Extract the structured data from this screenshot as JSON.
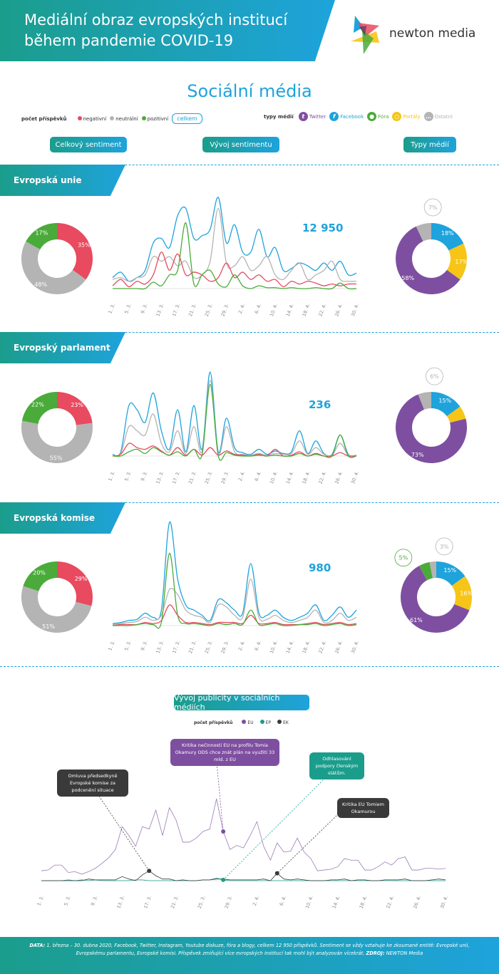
{
  "header": {
    "title_line1": "Mediální obraz evropských institucí",
    "title_line2": "během pandemie COVID-19",
    "logo_text": "newton media"
  },
  "subtitle": "Sociální média",
  "legend": {
    "label": "počet příspěvků",
    "negative": "negativní",
    "neutral": "neutrální",
    "positive": "pozitivní",
    "total": "celkem",
    "media_label": "typy médií",
    "twitter": "Twitter",
    "facebook": "Facebook",
    "fora": "Fóra",
    "portaly": "Portály",
    "ostatni": "Ostatní"
  },
  "colors": {
    "negative": "#e84a5f",
    "neutral": "#b4b4b4",
    "positive": "#4aab3a",
    "total": "#1ea3dc",
    "twitter": "#7e4fa0",
    "facebook": "#1ea3dc",
    "fora": "#4aab3a",
    "portaly": "#f6c518",
    "ostatni": "#b4b4b4",
    "ep": "#1b9d8c",
    "ek": "#3a3a3a"
  },
  "buttons": {
    "sentiment": "Celkový sentiment",
    "trend": "Vývoj sentimentu",
    "media": "Typy médií"
  },
  "chart_data": [
    {
      "type": "pie",
      "title": "Evropská unie – Celkový sentiment",
      "labels": [
        "negativní",
        "neutrální",
        "pozitivní"
      ],
      "values": [
        35,
        48,
        17
      ],
      "value_labels": [
        "35%",
        "48%",
        "17%"
      ]
    },
    {
      "type": "line",
      "title": "Evropská unie – Vývoj sentimentu",
      "total_posts": "12 950",
      "x_ticks": [
        "1. 3.",
        "5. 3.",
        "9. 3.",
        "13. 3.",
        "17. 3.",
        "21. 3.",
        "25. 3.",
        "29. 3.",
        "2. 4.",
        "6. 4.",
        "10. 4.",
        "14. 4.",
        "18. 4.",
        "22. 4.",
        "26. 4.",
        "30. 4."
      ],
      "series": [
        {
          "name": "celkem",
          "values": [
            12,
            18,
            8,
            12,
            20,
            50,
            55,
            45,
            80,
            88,
            55,
            58,
            65,
            100,
            50,
            70,
            40,
            40,
            65,
            35,
            45,
            20,
            22,
            28,
            25,
            20,
            28,
            20,
            30,
            15,
            17
          ]
        },
        {
          "name": "neutrální",
          "values": [
            10,
            12,
            8,
            12,
            15,
            35,
            30,
            35,
            25,
            30,
            12,
            15,
            30,
            88,
            28,
            25,
            35,
            20,
            25,
            35,
            15,
            10,
            20,
            28,
            10,
            15,
            20,
            30,
            10,
            8,
            8
          ]
        },
        {
          "name": "negativní",
          "values": [
            3,
            10,
            2,
            8,
            5,
            15,
            40,
            20,
            38,
            15,
            18,
            15,
            8,
            12,
            28,
            12,
            18,
            10,
            15,
            8,
            10,
            2,
            8,
            5,
            8,
            6,
            3,
            5,
            3,
            5,
            5
          ]
        },
        {
          "name": "pozitivní",
          "values": [
            0,
            0,
            0,
            0,
            0,
            7,
            3,
            15,
            20,
            72,
            5,
            15,
            20,
            5,
            2,
            15,
            3,
            0,
            3,
            1,
            1,
            0,
            1,
            0,
            0,
            1,
            0,
            0,
            6,
            0,
            0
          ]
        }
      ]
    },
    {
      "type": "pie",
      "title": "Evropská unie – Typy médií",
      "labels": [
        "Facebook",
        "Portály",
        "Twitter",
        "Fóra",
        "Ostatní"
      ],
      "values": [
        18,
        17,
        58,
        0,
        7
      ],
      "value_labels": [
        "18%",
        "17%",
        "58%",
        "",
        "7%"
      ]
    },
    {
      "type": "pie",
      "title": "Evropský parlament – Celkový sentiment",
      "labels": [
        "negativní",
        "neutrální",
        "pozitivní"
      ],
      "values": [
        23,
        55,
        22
      ],
      "value_labels": [
        "23%",
        "55%",
        "22%"
      ]
    },
    {
      "type": "line",
      "title": "Evropský parlament – Vývoj sentimentu",
      "total_posts": "236",
      "x_ticks": [
        "1. 3.",
        "5. 3.",
        "9. 3.",
        "13. 3.",
        "17. 3.",
        "21. 3.",
        "25. 3.",
        "29. 3.",
        "2. 4.",
        "6. 4.",
        "10. 4.",
        "14. 4.",
        "18. 4.",
        "22. 4.",
        "26. 4.",
        "30. 4."
      ],
      "series": [
        {
          "name": "celkem",
          "values": [
            2,
            5,
            60,
            55,
            40,
            75,
            30,
            8,
            55,
            5,
            60,
            8,
            100,
            5,
            45,
            10,
            4,
            2,
            8,
            2,
            6,
            3,
            5,
            30,
            3,
            18,
            3,
            2,
            25,
            2,
            1
          ]
        },
        {
          "name": "neutrální",
          "values": [
            1,
            3,
            35,
            30,
            25,
            50,
            15,
            5,
            30,
            3,
            35,
            5,
            90,
            3,
            35,
            5,
            2,
            1,
            3,
            1,
            3,
            2,
            3,
            18,
            2,
            10,
            2,
            1,
            15,
            1,
            1
          ]
        },
        {
          "name": "negativní",
          "values": [
            0,
            2,
            15,
            10,
            8,
            12,
            6,
            1,
            10,
            1,
            8,
            1,
            10,
            1,
            6,
            2,
            1,
            0,
            2,
            0,
            8,
            0,
            1,
            5,
            0,
            3,
            0,
            0,
            4,
            0,
            0
          ]
        },
        {
          "name": "pozitivní",
          "values": [
            0,
            0,
            5,
            8,
            3,
            10,
            5,
            1,
            5,
            0,
            8,
            1,
            85,
            0,
            4,
            1,
            0,
            0,
            1,
            0,
            1,
            0,
            0,
            3,
            0,
            2,
            0,
            0,
            25,
            0,
            0
          ]
        }
      ]
    },
    {
      "type": "pie",
      "title": "Evropský parlament – Typy médií",
      "labels": [
        "Facebook",
        "Portály",
        "Twitter",
        "Fóra",
        "Ostatní"
      ],
      "values": [
        15,
        6,
        73,
        0,
        6
      ],
      "value_labels": [
        "15%",
        "6%",
        "73%",
        "",
        "6%"
      ]
    },
    {
      "type": "pie",
      "title": "Evropská komise – Celkový sentiment",
      "labels": [
        "negativní",
        "neutrální",
        "pozitivní"
      ],
      "values": [
        29,
        51,
        20
      ],
      "value_labels": [
        "29%",
        "51%",
        "20%"
      ]
    },
    {
      "type": "line",
      "title": "Evropská komise – Vývoj sentimentu",
      "total_posts": "980",
      "x_ticks": [
        "1. 3.",
        "5. 3.",
        "9. 3.",
        "13. 3.",
        "17. 3.",
        "21. 3.",
        "25. 3.",
        "29. 3.",
        "2. 4.",
        "6. 4.",
        "10. 4.",
        "14. 4.",
        "18. 4.",
        "22. 4.",
        "26. 4.",
        "30. 4."
      ],
      "series": [
        {
          "name": "celkem",
          "values": [
            2,
            3,
            5,
            6,
            12,
            8,
            15,
            100,
            45,
            20,
            15,
            10,
            5,
            25,
            22,
            15,
            12,
            60,
            12,
            10,
            15,
            8,
            5,
            8,
            12,
            20,
            5,
            10,
            18,
            8,
            15
          ]
        },
        {
          "name": "neutrální",
          "values": [
            1,
            2,
            3,
            4,
            8,
            5,
            10,
            35,
            30,
            15,
            10,
            8,
            3,
            20,
            18,
            10,
            8,
            45,
            8,
            6,
            10,
            5,
            3,
            5,
            8,
            15,
            3,
            5,
            12,
            5,
            8
          ]
        },
        {
          "name": "negativní",
          "values": [
            0,
            1,
            1,
            1,
            3,
            2,
            5,
            20,
            10,
            3,
            3,
            2,
            1,
            3,
            3,
            3,
            2,
            10,
            2,
            2,
            3,
            1,
            1,
            1,
            2,
            3,
            1,
            2,
            3,
            1,
            2
          ]
        },
        {
          "name": "pozitivní",
          "values": [
            0,
            0,
            0,
            1,
            2,
            1,
            3,
            70,
            10,
            2,
            2,
            1,
            0,
            2,
            1,
            2,
            1,
            15,
            1,
            1,
            2,
            0,
            0,
            1,
            1,
            2,
            0,
            1,
            2,
            0,
            1
          ]
        }
      ]
    },
    {
      "type": "pie",
      "title": "Evropská komise – Typy médií",
      "labels": [
        "Facebook",
        "Portály",
        "Twitter",
        "Fóra",
        "Ostatní"
      ],
      "values": [
        15,
        16,
        61,
        5,
        3
      ],
      "value_labels": [
        "15%",
        "16%",
        "61%",
        "5%",
        "3%"
      ]
    },
    {
      "type": "line",
      "title": "Vývoj publicity v sociálních médiích",
      "legend_label": "počet příspěvků",
      "legend": [
        "EU",
        "EP",
        "EK"
      ],
      "x_ticks": [
        "1. 3.",
        "5. 3.",
        "9. 3.",
        "13. 3.",
        "17. 3.",
        "21. 3.",
        "25. 3.",
        "29. 3.",
        "2. 4.",
        "6. 4.",
        "10. 4.",
        "14. 4.",
        "18. 4.",
        "22. 4.",
        "26. 4.",
        "30. 4."
      ],
      "series": [
        {
          "name": "EU",
          "values": [
            12,
            13,
            19,
            19,
            10,
            11,
            8,
            11,
            15,
            21,
            28,
            38,
            66,
            55,
            42,
            66,
            63,
            86,
            55,
            89,
            74,
            47,
            47,
            52,
            60,
            63,
            100,
            60,
            38,
            43,
            40,
            55,
            72,
            42,
            25,
            46,
            35,
            36,
            52,
            35,
            27,
            12,
            13,
            14,
            17,
            27,
            25,
            25,
            13,
            13,
            17,
            23,
            19,
            27,
            29,
            13,
            13,
            15,
            15,
            14,
            15
          ]
        },
        {
          "name": "EP",
          "values": [
            0,
            0,
            0,
            0,
            1,
            0,
            1,
            0,
            1,
            0,
            0,
            0,
            0,
            0,
            1,
            1,
            0,
            0,
            0,
            0,
            0,
            0,
            0,
            0,
            1,
            1,
            3,
            1,
            0,
            0,
            0,
            0,
            0,
            0,
            0,
            0,
            0,
            0,
            0,
            0,
            0,
            0,
            0,
            0,
            0,
            0,
            0,
            0,
            0,
            0,
            0,
            0,
            0,
            0,
            0,
            0,
            0,
            0,
            0,
            0,
            0
          ]
        },
        {
          "name": "EK",
          "values": [
            0,
            0,
            0,
            0,
            0,
            0,
            0,
            2,
            1,
            1,
            1,
            1,
            5,
            2,
            0,
            7,
            12,
            6,
            2,
            2,
            0,
            1,
            0,
            0,
            1,
            1,
            2,
            2,
            1,
            1,
            1,
            1,
            1,
            2,
            0,
            9,
            2,
            1,
            2,
            1,
            0,
            0,
            0,
            1,
            1,
            2,
            0,
            1,
            1,
            0,
            0,
            1,
            1,
            1,
            2,
            0,
            0,
            0,
            1,
            2,
            1
          ]
        }
      ],
      "annotations": [
        {
          "text": "Omluva předsedkyně Evropské komise za podcenění situace",
          "series": "EK",
          "x": "17. 3."
        },
        {
          "text": "Kritika nečinnosti EU na profilu Tomia Okamury ODS chce znát plán na využití 33 mld. z EU",
          "series": "EU",
          "x": "28. 3."
        },
        {
          "text": "Odhlasování podpory členským státům.",
          "series": "EP",
          "x": "28. 3."
        },
        {
          "text": "Kritika EU Tomiem Okamurou",
          "series": "EK",
          "x": "5. 4."
        }
      ]
    }
  ],
  "sections": [
    {
      "title": "Evropská unie"
    },
    {
      "title": "Evropský parlament"
    },
    {
      "title": "Evropská komise"
    }
  ],
  "footer": {
    "data_label": "DATA:",
    "data_text": " 1. března – 30. dubna 2020, Facebook, Twitter, Instagram, Youtube diskuze, fóra a blogy, celkem 12 950 příspěvků. Sentiment se vždy vztahuje ke zkoumané entitě: Evropské unii, Evropskému parlamentu, Evropské komisi. Příspěvek zmiňující více evropských institucí tak mohl být analyzován vícekrát. ",
    "source_label": "ZDROJ:",
    "source_text": " NEWTON Media"
  }
}
